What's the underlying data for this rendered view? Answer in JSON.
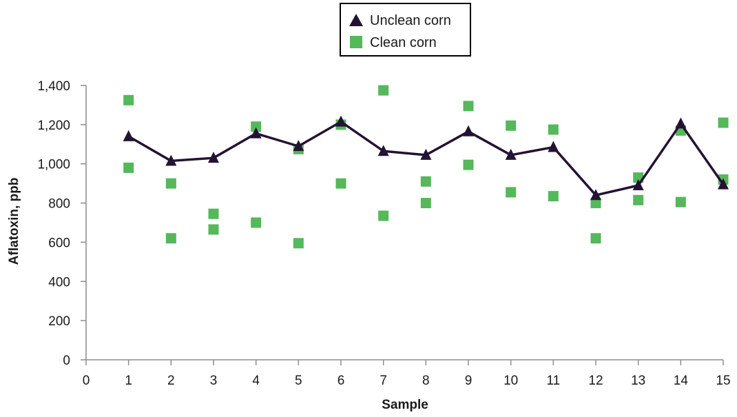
{
  "chart_data": {
    "type": "scatter",
    "xlabel": "Sample",
    "ylabel": "Aflatoxin, ppb",
    "xlim": [
      0,
      15
    ],
    "ylim": [
      0,
      1400
    ],
    "x_ticks": [
      0,
      1,
      2,
      3,
      4,
      5,
      6,
      7,
      8,
      9,
      10,
      11,
      12,
      13,
      14,
      15
    ],
    "y_ticks": [
      0,
      200,
      400,
      600,
      800,
      1000,
      1200,
      1400
    ],
    "y_tick_labels": [
      "0",
      "200",
      "400",
      "600",
      "800",
      "1,000",
      "1,200",
      "1,400"
    ],
    "grid": false,
    "legend_position": "top-center",
    "series": [
      {
        "name": "Unclean corn",
        "style": "line-with-triangle-markers",
        "color": "#231333",
        "x": [
          1,
          2,
          3,
          4,
          5,
          6,
          7,
          8,
          9,
          10,
          11,
          12,
          13,
          14,
          15
        ],
        "y": [
          1140,
          1015,
          1030,
          1155,
          1090,
          1215,
          1065,
          1045,
          1165,
          1045,
          1085,
          840,
          890,
          1205,
          895
        ]
      },
      {
        "name": "Clean corn",
        "style": "square-markers",
        "color": "#55b85a",
        "x": [
          1,
          1,
          2,
          2,
          3,
          3,
          4,
          4,
          5,
          5,
          6,
          6,
          7,
          7,
          8,
          8,
          9,
          9,
          10,
          10,
          11,
          11,
          12,
          12,
          13,
          13,
          14,
          14,
          15,
          15
        ],
        "y": [
          1325,
          980,
          900,
          620,
          745,
          665,
          1190,
          700,
          1075,
          595,
          1200,
          900,
          1375,
          735,
          910,
          800,
          1295,
          995,
          1195,
          855,
          1175,
          835,
          800,
          620,
          930,
          815,
          1170,
          805,
          1210,
          920
        ]
      }
    ]
  }
}
